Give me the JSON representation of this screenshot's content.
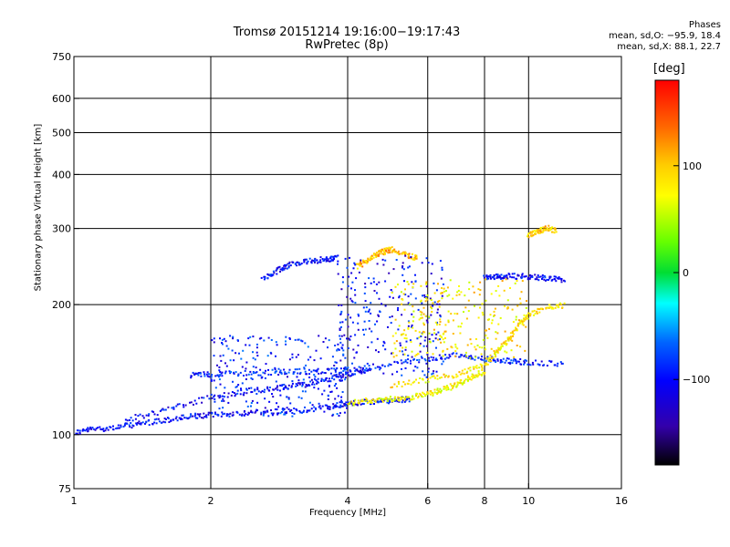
{
  "header": {
    "title_line1": "Tromsø 20151214 19:16:00−19:17:43",
    "title_line2": "RwPretec (8p)",
    "stats_title": "Phases",
    "stats_o": "mean, sd,O: −95.9, 18.4",
    "stats_x": "mean, sd,X:  88.1, 22.7"
  },
  "colorbar": {
    "unit": "[deg]",
    "ticks": [
      {
        "value": 100,
        "label": "100"
      },
      {
        "value": 0,
        "label": "0"
      },
      {
        "value": -100,
        "label": "−100"
      }
    ],
    "range": [
      -180,
      180
    ]
  },
  "chart_data": {
    "type": "scatter",
    "title": "Tromsø 20151214 19:16:00−19:17:43",
    "subtitle": "RwPretec (8p)",
    "xlabel": "Frequency [MHz]",
    "ylabel": "Stationary phase Virtual Height [km]",
    "xscale": "log",
    "yscale": "log",
    "xlim": [
      1,
      16
    ],
    "ylim": [
      75,
      750
    ],
    "grid": true,
    "x_ticks": [
      {
        "value": 1,
        "label": "1"
      },
      {
        "value": 2,
        "label": "2"
      },
      {
        "value": 4,
        "label": "4"
      },
      {
        "value": 6,
        "label": "6"
      },
      {
        "value": 8,
        "label": "8"
      },
      {
        "value": 10,
        "label": "10"
      },
      {
        "value": 16,
        "label": "16"
      }
    ],
    "y_ticks": [
      {
        "value": 75,
        "label": "75"
      },
      {
        "value": 100,
        "label": "100"
      },
      {
        "value": 200,
        "label": "200"
      },
      {
        "value": 300,
        "label": "300"
      },
      {
        "value": 400,
        "label": "400"
      },
      {
        "value": 500,
        "label": "500"
      },
      {
        "value": 600,
        "label": "600"
      },
      {
        "value": 750,
        "label": "750"
      }
    ],
    "x_gridlines": [
      2,
      4,
      6,
      8,
      10
    ],
    "y_gridlines": [
      100,
      200,
      300,
      400,
      500,
      600
    ],
    "color_scale": "phase [deg], −180 (black) → blue → cyan → green → yellow → red (180)",
    "traces": [
      {
        "desc": "E-layer O-mode",
        "phase": -100,
        "pts": [
          [
            1,
            101
          ],
          [
            1.1,
            103
          ],
          [
            1.25,
            104
          ],
          [
            1.4,
            106
          ],
          [
            1.6,
            108
          ],
          [
            1.8,
            110
          ],
          [
            2,
            111
          ],
          [
            2.3,
            112
          ],
          [
            2.7,
            113
          ],
          [
            3.2,
            114
          ],
          [
            3.7,
            116
          ],
          [
            4,
            118
          ],
          [
            4.5,
            119
          ],
          [
            5,
            120
          ],
          [
            5.5,
            121
          ]
        ]
      },
      {
        "desc": "E-layer X-mode",
        "phase": 90,
        "pts": [
          [
            4,
            118
          ],
          [
            4.5,
            120
          ],
          [
            5,
            121
          ],
          [
            5.5,
            122
          ],
          [
            6,
            124
          ],
          [
            6.5,
            127
          ],
          [
            7,
            131
          ],
          [
            7.5,
            136
          ],
          [
            8,
            140
          ]
        ]
      },
      {
        "desc": "F1 O-mode",
        "phase": -100,
        "pts": [
          [
            1.3,
            108
          ],
          [
            1.6,
            114
          ],
          [
            2,
            122
          ],
          [
            2.4,
            126
          ],
          [
            2.8,
            128
          ],
          [
            3.2,
            131
          ],
          [
            3.6,
            134
          ],
          [
            4,
            138
          ],
          [
            4.5,
            142
          ]
        ]
      },
      {
        "desc": "F1 mid O-mode",
        "phase": -90,
        "pts": [
          [
            1.8,
            137
          ],
          [
            2,
            138
          ],
          [
            2.5,
            139
          ],
          [
            3,
            140
          ],
          [
            3.5,
            140
          ],
          [
            4,
            141
          ],
          [
            5,
            146
          ],
          [
            6,
            150
          ],
          [
            7,
            153
          ],
          [
            8,
            150
          ],
          [
            9,
            148
          ],
          [
            10,
            147
          ],
          [
            12,
            146
          ]
        ]
      },
      {
        "desc": "F1 X-mode",
        "phase": 100,
        "pts": [
          [
            5,
            130
          ],
          [
            6,
            134
          ],
          [
            7,
            138
          ],
          [
            8,
            145
          ],
          [
            8.5,
            155
          ],
          [
            9,
            165
          ],
          [
            9.5,
            178
          ],
          [
            10,
            190
          ],
          [
            11,
            197
          ],
          [
            12,
            199
          ]
        ]
      },
      {
        "desc": "F2 O-mode",
        "phase": -100,
        "pts": [
          [
            2.6,
            228
          ],
          [
            2.8,
            240
          ],
          [
            3,
            248
          ],
          [
            3.3,
            252
          ],
          [
            3.6,
            255
          ],
          [
            3.8,
            256
          ]
        ]
      },
      {
        "desc": "F2 X-mode",
        "phase": 120,
        "pts": [
          [
            4.2,
            245
          ],
          [
            4.4,
            252
          ],
          [
            4.6,
            260
          ],
          [
            4.8,
            265
          ],
          [
            5,
            268
          ],
          [
            5.4,
            260
          ],
          [
            5.7,
            255
          ]
        ]
      },
      {
        "desc": "F2 upper O-mode",
        "phase": -100,
        "pts": [
          [
            8,
            230
          ],
          [
            8.5,
            232
          ],
          [
            9,
            233
          ],
          [
            10,
            232
          ],
          [
            11,
            230
          ],
          [
            12,
            228
          ]
        ]
      },
      {
        "desc": "F2 ridge X-mode",
        "phase": 110,
        "pts": [
          [
            10,
            290
          ],
          [
            10.5,
            295
          ],
          [
            11,
            300
          ],
          [
            11.5,
            296
          ]
        ]
      }
    ],
    "clouds": [
      {
        "desc": "spread F",
        "phase": -100,
        "x": [
          3.8,
          6.5
        ],
        "y": [
          135,
          260
        ]
      },
      {
        "desc": "mid scatter",
        "phase": -90,
        "x": [
          2,
          4
        ],
        "y": [
          110,
          170
        ]
      },
      {
        "desc": "X scatter",
        "phase": 100,
        "x": [
          5,
          10
        ],
        "y": [
          150,
          230
        ]
      }
    ]
  }
}
